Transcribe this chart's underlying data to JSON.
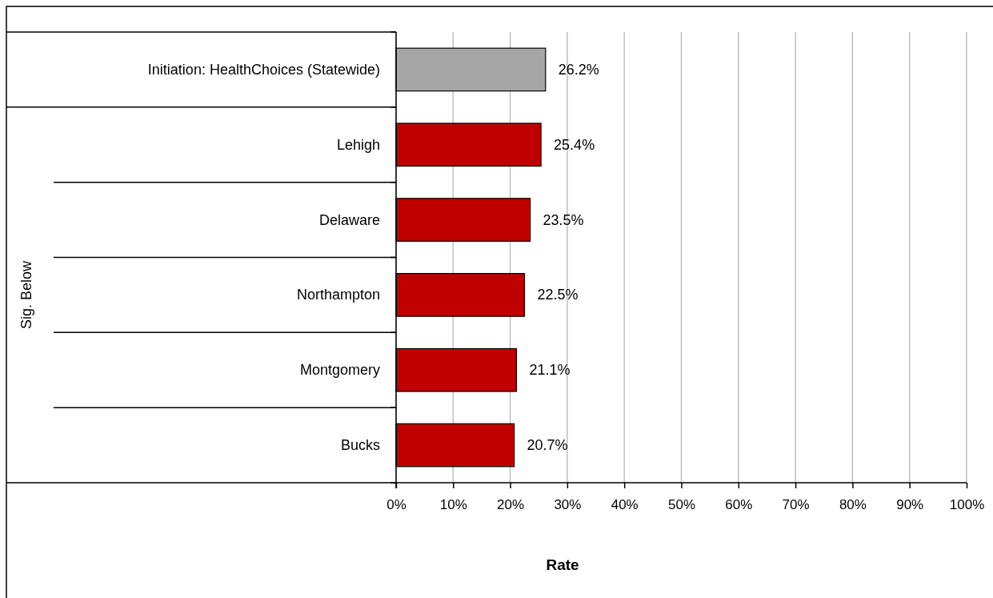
{
  "chart_data": {
    "type": "bar",
    "orientation": "horizontal",
    "xlabel": "Rate",
    "annotations": [
      "Sig. Below"
    ],
    "categories": [
      "Initiation: HealthChoices (Statewide)",
      "Lehigh",
      "Delaware",
      "Northampton",
      "Montgomery",
      "Bucks"
    ],
    "values": [
      26.2,
      25.4,
      23.5,
      22.5,
      21.1,
      20.7
    ],
    "colors": [
      "#a6a6a6",
      "#c00000",
      "#c00000",
      "#c00000",
      "#c00000",
      "#c00000"
    ],
    "value_labels": [
      "26.2%",
      "25.4%",
      "23.5%",
      "22.5%",
      "21.1%",
      "20.7%"
    ],
    "xlim": [
      0,
      100
    ],
    "xticks": [
      {
        "value": 0,
        "label": "0%"
      },
      {
        "value": 10,
        "label": "10%"
      },
      {
        "value": 20,
        "label": "20%"
      },
      {
        "value": 30,
        "label": "30%"
      },
      {
        "value": 40,
        "label": "40%"
      },
      {
        "value": 50,
        "label": "50%"
      },
      {
        "value": 60,
        "label": "60%"
      },
      {
        "value": 70,
        "label": "70%"
      },
      {
        "value": 80,
        "label": "80%"
      },
      {
        "value": 90,
        "label": "90%"
      },
      {
        "value": 100,
        "label": "100%"
      }
    ],
    "grid": "x"
  }
}
